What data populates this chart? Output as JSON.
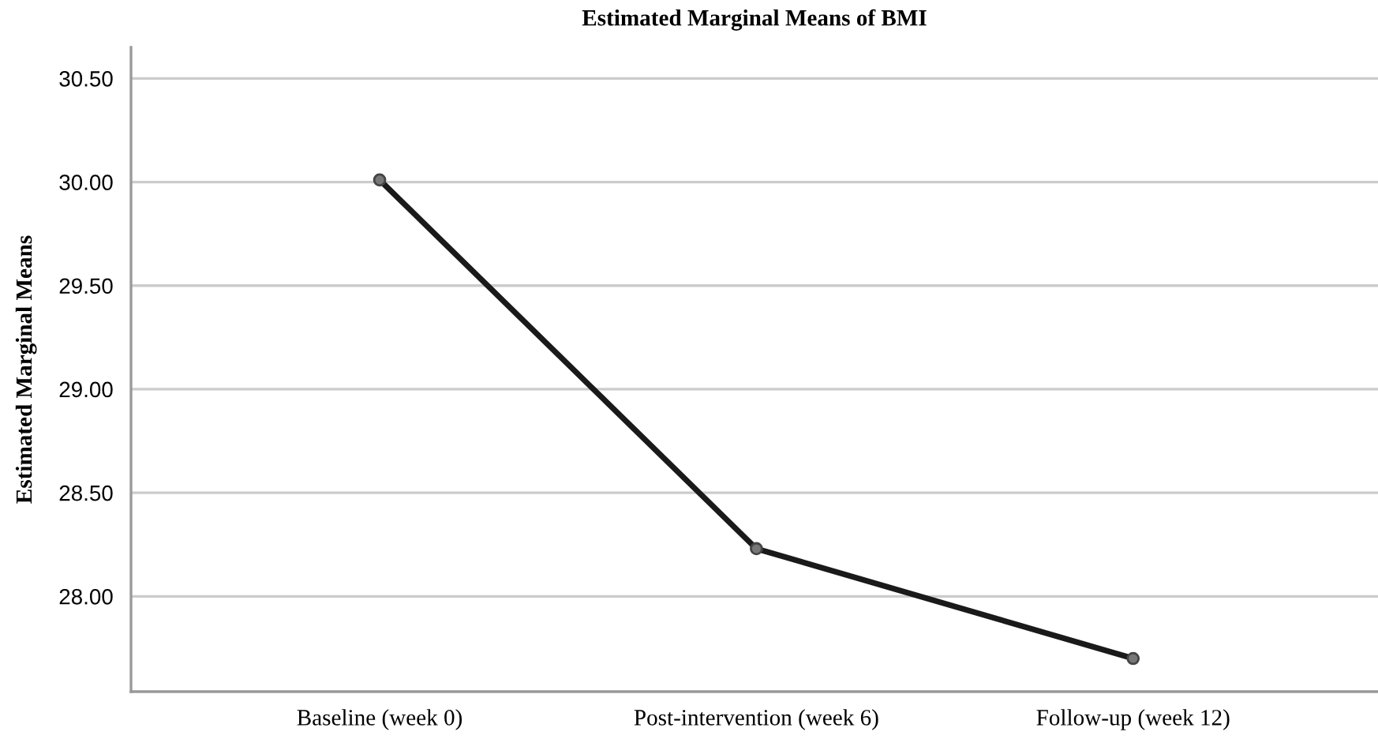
{
  "chart_data": {
    "type": "line",
    "title": "Estimated Marginal Means of BMI",
    "ylabel": "Estimated Marginal Means",
    "categories": [
      "Baseline (week 0)",
      "Post-intervention (week 6)",
      "Follow-up (week 12)"
    ],
    "series": [
      {
        "color": "#1a1a1a",
        "values": [
          30.01,
          28.23,
          27.7
        ]
      }
    ],
    "ylim": [
      27.54,
      30.65
    ],
    "yticks": [
      {
        "value": 28,
        "label": "28.00"
      },
      {
        "value": 28.5,
        "label": "28.50"
      },
      {
        "value": 29,
        "label": "29.00"
      },
      {
        "value": 29.5,
        "label": "29.50"
      },
      {
        "value": 30,
        "label": "30.00"
      },
      {
        "value": 30.5,
        "label": "30.50"
      }
    ],
    "grid": "y",
    "marker": "circle",
    "line_style": "solid"
  }
}
